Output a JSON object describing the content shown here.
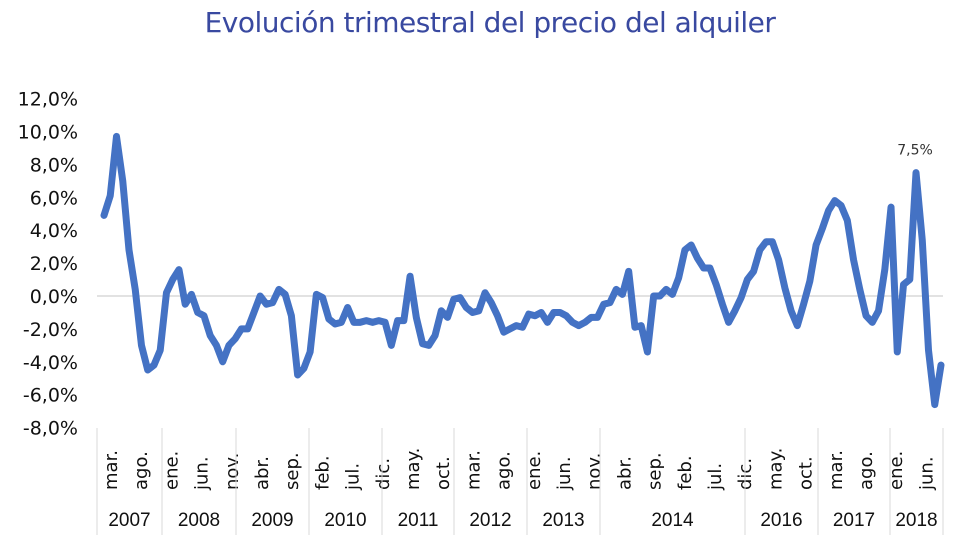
{
  "chart_data": {
    "type": "line",
    "title": "Evolución trimestral del precio del alquiler",
    "xlabel": "",
    "ylabel": "",
    "ylim": [
      -8,
      12
    ],
    "y_ticks": [
      "12,0%",
      "10,0%",
      "8,0%",
      "6,0%",
      "4,0%",
      "2,0%",
      "0,0%",
      "-2,0%",
      "-4,0%",
      "-6,0%",
      "-8,0%"
    ],
    "y_tick_values": [
      12,
      10,
      8,
      6,
      4,
      2,
      0,
      -2,
      -4,
      -6,
      -8
    ],
    "grid": "zero line only",
    "line_color": "#4472c4",
    "x_tick_labels": [
      "mar.",
      "ago.",
      "ene.",
      "jun.",
      "nov.",
      "abr.",
      "sep.",
      "feb.",
      "jul.",
      "dic.",
      "may.",
      "oct.",
      "mar.",
      "ago.",
      "ene.",
      "jun.",
      "nov.",
      "abr.",
      "sep.",
      "feb.",
      "jul.",
      "dic.",
      "may.",
      "oct.",
      "mar.",
      "ago.",
      "ene.",
      "jun."
    ],
    "year_groups": [
      "2007",
      "2008",
      "2009",
      "2010",
      "2011",
      "2012",
      "2013",
      "2014",
      "2016",
      "2017",
      "2018"
    ],
    "values": [
      4.9,
      6.1,
      9.7,
      7.0,
      2.8,
      0.4,
      -3.0,
      -4.5,
      -4.2,
      -3.3,
      0.2,
      1.0,
      1.6,
      -0.5,
      0.1,
      -1.0,
      -1.2,
      -2.4,
      -3.0,
      -4.0,
      -3.0,
      -2.6,
      -2.0,
      -2.0,
      -1.0,
      0.0,
      -0.5,
      -0.4,
      0.4,
      0.1,
      -1.2,
      -4.8,
      -4.4,
      -3.4,
      0.1,
      -0.1,
      -1.4,
      -1.7,
      -1.6,
      -0.7,
      -1.6,
      -1.6,
      -1.5,
      -1.6,
      -1.5,
      -1.6,
      -3.0,
      -1.5,
      -1.5,
      1.2,
      -1.3,
      -2.9,
      -3.0,
      -2.4,
      -0.9,
      -1.3,
      -0.2,
      -0.1,
      -0.7,
      -1.0,
      -0.9,
      0.2,
      -0.4,
      -1.2,
      -2.2,
      -2.0,
      -1.8,
      -1.9,
      -1.1,
      -1.2,
      -1.0,
      -1.6,
      -1.0,
      -1.0,
      -1.2,
      -1.6,
      -1.8,
      -1.6,
      -1.3,
      -1.3,
      -0.5,
      -0.4,
      0.4,
      0.1,
      1.5,
      -1.9,
      -1.8,
      -3.4,
      0.0,
      0.0,
      0.4,
      0.1,
      1.1,
      2.8,
      3.1,
      2.3,
      1.7,
      1.7,
      0.7,
      -0.5,
      -1.6,
      -0.9,
      -0.1,
      1.0,
      1.5,
      2.8,
      3.3,
      3.3,
      2.2,
      0.5,
      -0.9,
      -1.8,
      -0.5,
      0.9,
      3.1,
      4.1,
      5.2,
      5.8,
      5.5,
      4.6,
      2.2,
      0.4,
      -1.2,
      -1.6,
      -0.9,
      1.6,
      5.4,
      -3.4,
      0.7,
      1.0,
      7.5,
      3.4,
      -3.3,
      -6.6,
      -4.2
    ],
    "annotations": [
      {
        "label": "7,5%",
        "value": 7.5
      }
    ]
  }
}
